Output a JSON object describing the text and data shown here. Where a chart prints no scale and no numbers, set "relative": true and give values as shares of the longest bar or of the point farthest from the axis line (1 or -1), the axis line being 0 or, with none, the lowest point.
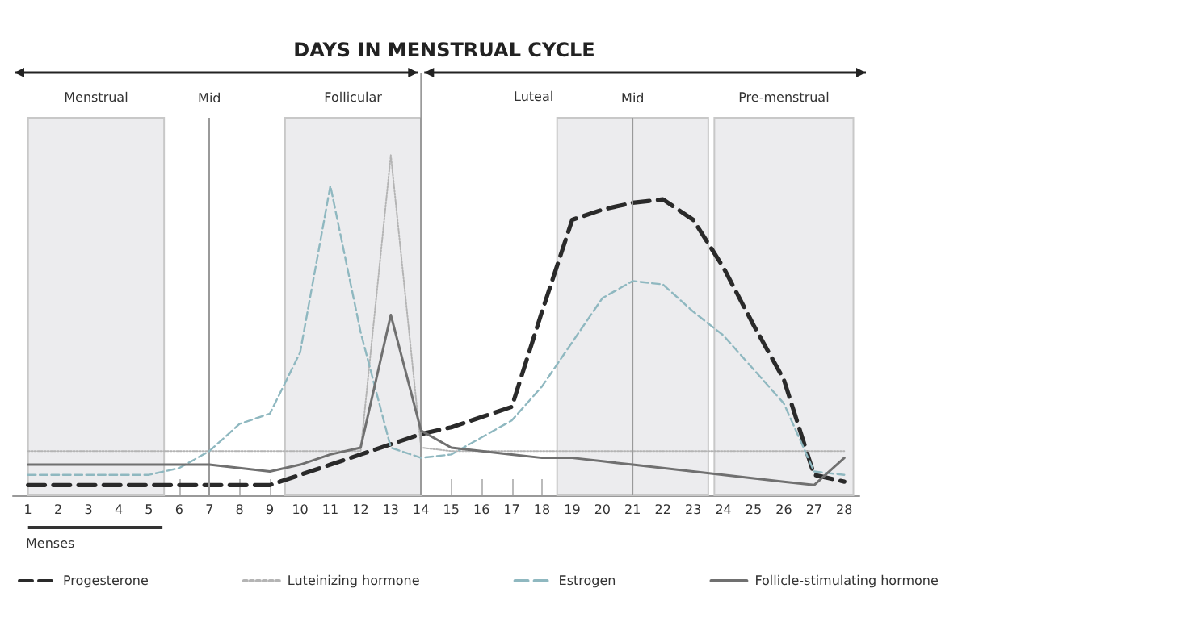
{
  "chart_data": {
    "type": "line",
    "title": "DAYS IN MENSTRUAL CYCLE",
    "relative": true,
    "x": [
      1,
      2,
      3,
      4,
      5,
      6,
      7,
      8,
      9,
      10,
      11,
      12,
      13,
      14,
      15,
      16,
      17,
      18,
      19,
      20,
      21,
      22,
      23,
      24,
      25,
      26,
      27,
      28
    ],
    "xlim": [
      0.5,
      28.5
    ],
    "xticks": [
      1,
      2,
      3,
      4,
      5,
      6,
      7,
      8,
      9,
      10,
      11,
      12,
      13,
      14,
      15,
      16,
      17,
      18,
      19,
      20,
      21,
      22,
      23,
      24,
      25,
      26,
      27,
      28
    ],
    "series": [
      {
        "name": "Progesterone",
        "color": "#2a2a2a",
        "line_style": "dashed",
        "values": [
          0.03,
          0.03,
          0.03,
          0.03,
          0.03,
          0.03,
          0.03,
          0.03,
          0.03,
          0.06,
          0.09,
          0.12,
          0.15,
          0.18,
          0.2,
          0.23,
          0.26,
          0.54,
          0.81,
          0.84,
          0.86,
          0.87,
          0.81,
          0.67,
          0.5,
          0.34,
          0.06,
          0.04
        ]
      },
      {
        "name": "Luteinizing hormone",
        "color": "#b4b4b4",
        "line_style": "dotted",
        "values": [
          0.13,
          0.13,
          0.13,
          0.13,
          0.13,
          0.13,
          0.13,
          0.13,
          0.13,
          0.13,
          0.13,
          0.13,
          1,
          0.14,
          0.13,
          0.13,
          0.13,
          0.13,
          0.13,
          0.13,
          0.13,
          0.13,
          0.13,
          0.13,
          0.13,
          0.13,
          0.13,
          0.13
        ]
      },
      {
        "name": "Estrogen",
        "color": "#8fb8c0",
        "line_style": "dashed",
        "values": [
          0.06,
          0.06,
          0.06,
          0.06,
          0.06,
          0.08,
          0.13,
          0.21,
          0.24,
          0.42,
          0.91,
          0.48,
          0.14,
          0.11,
          0.12,
          0.17,
          0.22,
          0.32,
          0.45,
          0.58,
          0.63,
          0.62,
          0.54,
          0.47,
          0.37,
          0.27,
          0.07,
          0.06
        ]
      },
      {
        "name": "Follicle-stimulating hormone",
        "color": "#707070",
        "line_style": "solid",
        "values": [
          0.09,
          0.09,
          0.09,
          0.09,
          0.09,
          0.09,
          0.09,
          0.08,
          0.07,
          0.09,
          0.12,
          0.14,
          0.53,
          0.19,
          0.14,
          0.13,
          0.12,
          0.11,
          0.11,
          0.1,
          0.09,
          0.08,
          0.07,
          0.06,
          0.05,
          0.04,
          0.03,
          0.11
        ]
      }
    ],
    "bands": [
      {
        "axis": "x",
        "from": 1,
        "to": 5.5,
        "label": "Menstrual",
        "color": "#ececee"
      },
      {
        "axis": "x",
        "from": 9.5,
        "to": 14,
        "label": "Follicular",
        "color": "#ececee"
      },
      {
        "axis": "x",
        "from": 18.5,
        "to": 21,
        "color": "#ececee"
      },
      {
        "axis": "x",
        "from": 21,
        "to": 23.5,
        "color": "#ececee"
      },
      {
        "axis": "x",
        "from": 23.7,
        "to": 28.3,
        "label": "Pre-menstrual",
        "color": "#ececee"
      }
    ],
    "ref_lines": [
      {
        "axis": "x",
        "value": 7,
        "label": "Mid"
      },
      {
        "axis": "x",
        "value": 14
      },
      {
        "axis": "x",
        "value": 21,
        "label": "Mid"
      }
    ],
    "annotations": [
      "Luteal",
      "Menses"
    ],
    "marker": "none",
    "grid": false,
    "legend": "bottom"
  }
}
